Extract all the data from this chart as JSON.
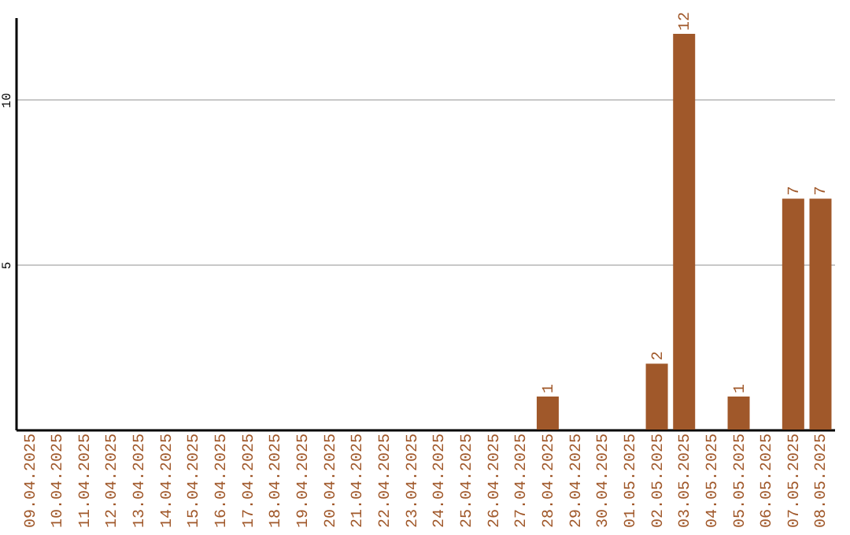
{
  "chart_data": {
    "type": "bar",
    "categories": [
      "09.04.2025",
      "10.04.2025",
      "11.04.2025",
      "12.04.2025",
      "13.04.2025",
      "14.04.2025",
      "15.04.2025",
      "16.04.2025",
      "17.04.2025",
      "18.04.2025",
      "19.04.2025",
      "20.04.2025",
      "21.04.2025",
      "22.04.2025",
      "23.04.2025",
      "24.04.2025",
      "25.04.2025",
      "26.04.2025",
      "27.04.2025",
      "28.04.2025",
      "29.04.2025",
      "30.04.2025",
      "01.05.2025",
      "02.05.2025",
      "03.05.2025",
      "04.05.2025",
      "05.05.2025",
      "06.05.2025",
      "07.05.2025",
      "08.05.2025"
    ],
    "values": [
      0,
      0,
      0,
      0,
      0,
      0,
      0,
      0,
      0,
      0,
      0,
      0,
      0,
      0,
      0,
      0,
      0,
      0,
      0,
      1,
      0,
      0,
      0,
      2,
      12,
      0,
      1,
      0,
      7,
      7
    ],
    "value_labels": [
      null,
      null,
      null,
      null,
      null,
      null,
      null,
      null,
      null,
      null,
      null,
      null,
      null,
      null,
      null,
      null,
      null,
      null,
      null,
      "1",
      null,
      null,
      null,
      "2",
      "12",
      null,
      "1",
      null,
      "7",
      "7"
    ],
    "color": "#a0582a",
    "ylim": [
      0,
      12.5
    ],
    "yticks": [
      5,
      10
    ],
    "grid": "y"
  }
}
